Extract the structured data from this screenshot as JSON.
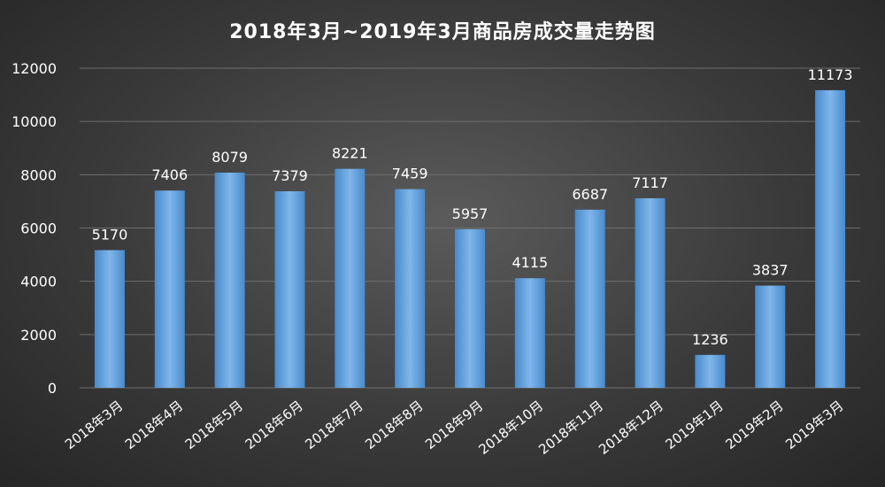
{
  "chart_data": {
    "type": "bar",
    "title": "2018年3月~2019年3月商品房成交量走势图",
    "xlabel": "",
    "ylabel": "",
    "categories": [
      "2018年3月",
      "2018年4月",
      "2018年5月",
      "2018年6月",
      "2018年7月",
      "2018年8月",
      "2018年9月",
      "2018年10月",
      "2018年11月",
      "2018年12月",
      "2019年1月",
      "2019年2月",
      "2019年3月"
    ],
    "values": [
      5170,
      7406,
      8079,
      7379,
      8221,
      7459,
      5957,
      4115,
      6687,
      7117,
      1236,
      3837,
      11173
    ],
    "yticks": [
      0,
      2000,
      4000,
      6000,
      8000,
      10000,
      12000
    ],
    "ylim": [
      0,
      12000
    ],
    "grid": true,
    "legend": "none",
    "colors": {
      "bar": "#5b9bd5",
      "bar_light": "#7fb6ea",
      "grid": "#6e6e6e",
      "text": "#ffffff"
    }
  }
}
